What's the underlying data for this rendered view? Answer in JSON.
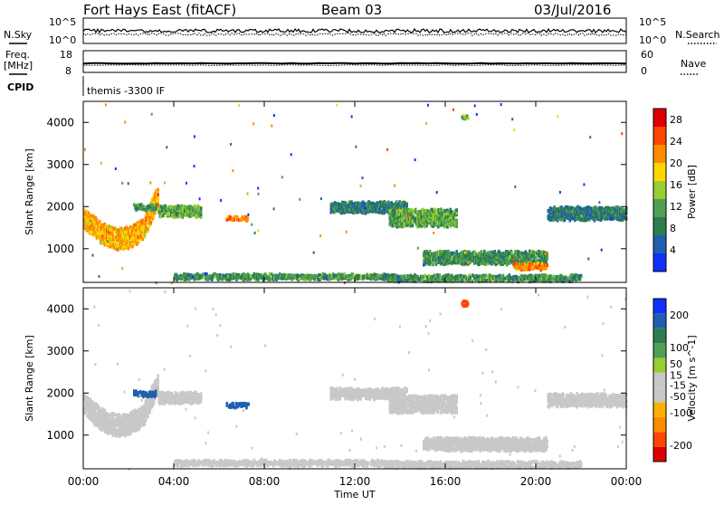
{
  "header": {
    "radar": "Fort Hays East (fitACF)",
    "beam": "Beam 03",
    "date": "03/Jul/2016"
  },
  "noise_panel": {
    "left_label": "N.Sky",
    "right_label": "N.Search",
    "left_ticks": [
      "10^5",
      "10^0"
    ],
    "right_ticks": [
      "10^5",
      "10^0"
    ]
  },
  "freq_panel": {
    "left_label_1": "Freq.",
    "left_label_2": "[MHz]",
    "right_label": "Nave",
    "left_ticks": [
      "18",
      "8"
    ],
    "right_ticks": [
      "60",
      "0"
    ]
  },
  "cpid_panel": {
    "label": "CPID",
    "program": "themis -3300 IF"
  },
  "colors": {
    "power": [
      "#1030ff",
      "#1f5fb0",
      "#2e7d4f",
      "#4fa050",
      "#9acd32",
      "#ffd700",
      "#ff8c00",
      "#ff4500",
      "#e00000"
    ],
    "velocity": [
      "#e00000",
      "#ff4500",
      "#ff8c00",
      "#ffb000",
      "#c8c8c8",
      "#c8c8c8",
      "#9acd32",
      "#4fa050",
      "#2e7d4f",
      "#1f5fb0",
      "#1030ff"
    ]
  },
  "chart_data": [
    {
      "type": "heatmap",
      "panel": "power",
      "ylabel": "Slant Range [km]",
      "xlabel": "Time UT",
      "x_ticks": [
        "00:00",
        "04:00",
        "08:00",
        "12:00",
        "16:00",
        "20:00",
        "00:00"
      ],
      "x_range_hours": [
        0,
        24
      ],
      "y_ticks": [
        1000,
        2000,
        3000,
        4000
      ],
      "ylim": [
        200,
        4500
      ],
      "colorbar_label": "Power [dB]",
      "colorbar_ticks": [
        4,
        8,
        12,
        16,
        20,
        24,
        28
      ],
      "colorbar_range": [
        0,
        30
      ],
      "regions": [
        {
          "t0": 0.0,
          "t1": 3.3,
          "r_center": 1500,
          "r_width": 500,
          "value": 20,
          "shape": "arc"
        },
        {
          "t0": 2.2,
          "t1": 3.2,
          "r_center": 2000,
          "r_width": 120,
          "value": 10
        },
        {
          "t0": 3.3,
          "t1": 5.2,
          "r_center": 1900,
          "r_width": 250,
          "value": 12
        },
        {
          "t0": 6.3,
          "t1": 7.3,
          "r_center": 1730,
          "r_width": 100,
          "value": 22
        },
        {
          "t0": 4.0,
          "t1": 13.5,
          "r_center": 350,
          "r_width": 120,
          "value": 10
        },
        {
          "t0": 10.9,
          "t1": 14.3,
          "r_center": 2000,
          "r_width": 250,
          "value": 8
        },
        {
          "t0": 13.5,
          "t1": 16.5,
          "r_center": 1750,
          "r_width": 400,
          "value": 12
        },
        {
          "t0": 13.2,
          "t1": 22.0,
          "r_center": 320,
          "r_width": 140,
          "value": 10
        },
        {
          "t0": 15.0,
          "t1": 20.5,
          "r_center": 800,
          "r_width": 300,
          "value": 10
        },
        {
          "t0": 19.0,
          "t1": 20.5,
          "r_center": 600,
          "r_width": 150,
          "value": 22
        },
        {
          "t0": 20.5,
          "t1": 24.0,
          "r_center": 1850,
          "r_width": 300,
          "value": 8
        },
        {
          "t0": 16.7,
          "t1": 17.0,
          "r_center": 4150,
          "r_width": 100,
          "value": 12
        }
      ]
    },
    {
      "type": "heatmap",
      "panel": "velocity",
      "ylabel": "Slant Range [km]",
      "xlabel": "Time UT",
      "x_ticks": [
        "00:00",
        "04:00",
        "08:00",
        "12:00",
        "16:00",
        "20:00",
        "00:00"
      ],
      "x_range_hours": [
        0,
        24
      ],
      "y_ticks": [
        1000,
        2000,
        3000,
        4000
      ],
      "ylim": [
        200,
        4500
      ],
      "colorbar_label": "Velocity [m s^-1]",
      "colorbar_ticks": [
        200,
        100,
        50,
        15,
        -15,
        -50,
        -100,
        -200
      ],
      "colorbar_range": [
        -250,
        250
      ],
      "regions": [
        {
          "t0": 0.0,
          "t1": 3.3,
          "r_center": 1500,
          "r_width": 500,
          "value": 0,
          "shape": "arc"
        },
        {
          "t0": 2.2,
          "t1": 3.2,
          "r_center": 2000,
          "r_width": 120,
          "value": 200
        },
        {
          "t0": 3.3,
          "t1": 5.2,
          "r_center": 1900,
          "r_width": 250,
          "value": -40
        },
        {
          "t0": 6.3,
          "t1": 7.3,
          "r_center": 1730,
          "r_width": 100,
          "value": 180
        },
        {
          "t0": 4.0,
          "t1": 13.5,
          "r_center": 350,
          "r_width": 120,
          "value": -60
        },
        {
          "t0": 10.9,
          "t1": 14.3,
          "r_center": 2000,
          "r_width": 250,
          "value": 0
        },
        {
          "t0": 13.5,
          "t1": 16.5,
          "r_center": 1750,
          "r_width": 400,
          "value": 0
        },
        {
          "t0": 13.2,
          "t1": 22.0,
          "r_center": 320,
          "r_width": 140,
          "value": -40
        },
        {
          "t0": 15.0,
          "t1": 20.5,
          "r_center": 800,
          "r_width": 300,
          "value": 0
        },
        {
          "t0": 20.5,
          "t1": 24.0,
          "r_center": 1850,
          "r_width": 300,
          "value": 0
        },
        {
          "t0": 16.7,
          "t1": 17.0,
          "r_center": 4150,
          "r_width": 100,
          "value": -200
        }
      ]
    }
  ]
}
